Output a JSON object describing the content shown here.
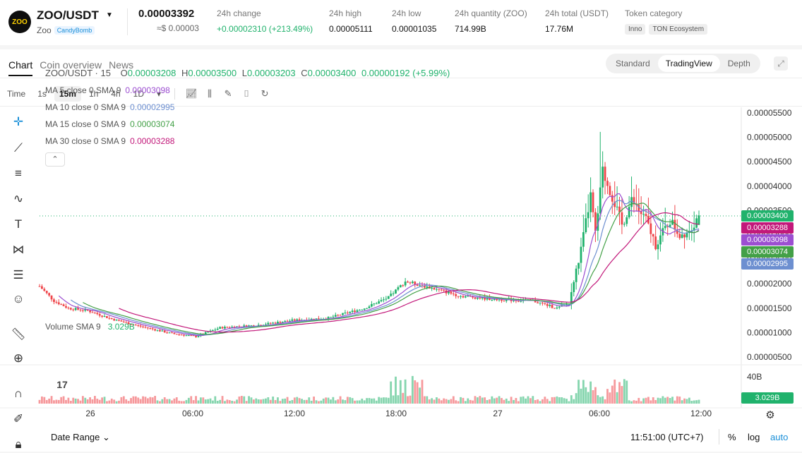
{
  "header": {
    "logo_text": "ZOO",
    "pair": "ZOO/USDT",
    "caret": "▼",
    "token_name": "Zoo",
    "badge": "CandyBomb",
    "last_price": "0.00003392",
    "price_usd": "≈$ 0.00003",
    "stats": [
      {
        "label": "24h change",
        "value": "+0.00002310 (+213.49%)"
      },
      {
        "label": "24h high",
        "value": "0.00005111"
      },
      {
        "label": "24h low",
        "value": "0.00001035"
      },
      {
        "label": "24h quantity (ZOO)",
        "value": "714.99B"
      },
      {
        "label": "24h total (USDT)",
        "value": "17.76M"
      }
    ],
    "category_label": "Token category",
    "categories": [
      "Inno",
      "TON Ecosystem"
    ]
  },
  "tabs": [
    "Chart",
    "Coin overview",
    "News"
  ],
  "view_switch": [
    "Standard",
    "TradingView",
    "Depth"
  ],
  "toolbar": {
    "time_label": "Time",
    "timeframes": [
      "1s",
      "15m",
      "1h",
      "4h",
      "1D"
    ],
    "active_timeframe": "15m",
    "more": "▾"
  },
  "legend": {
    "symbol": "ZOO/USDT · 15",
    "o_label": "O",
    "o": "0.00003208",
    "h_label": "H",
    "h": "0.00003500",
    "l_label": "L",
    "l": "0.00003203",
    "c_label": "C",
    "c": "0.00003400",
    "change": "0.00000192 (+5.99%)",
    "ma": [
      {
        "label": "MA 5 close 0 SMA 9",
        "value": "0.00003098",
        "color": "#9c4fd1"
      },
      {
        "label": "MA 10 close 0 SMA 9",
        "value": "0.00002995",
        "color": "#6d8fd0"
      },
      {
        "label": "MA 15 close 0 SMA 9",
        "value": "0.00003074",
        "color": "#43a047"
      },
      {
        "label": "MA 30 close 0 SMA 9",
        "value": "0.00003288",
        "color": "#c2187a"
      }
    ],
    "collapse": "⌃"
  },
  "volume": {
    "label": "Volume SMA 9",
    "value": "3.029B",
    "axis_label": "40B"
  },
  "price_axis": [
    "0.00005500",
    "0.00005000",
    "0.00004500",
    "0.00004000",
    "0.00003500",
    "0.00003000",
    "0.00002500",
    "0.00002000",
    "0.00001500",
    "0.00001000",
    "0.00000500"
  ],
  "time_axis": [
    "26",
    "06:00",
    "12:00",
    "18:00",
    "27",
    "06:00",
    "12:00"
  ],
  "price_tags": [
    {
      "value": "0.00003400",
      "color": "#20b26c"
    },
    {
      "value": "0.00003288",
      "color": "#c2187a"
    },
    {
      "value": "0.00003098",
      "color": "#9c4fd1"
    },
    {
      "value": "0.00003074",
      "color": "#43a047"
    },
    {
      "value": "0.00002995",
      "color": "#6d8fd0"
    }
  ],
  "footer": {
    "date_range": "Date Range",
    "clock": "11:51:00 (UTC+7)",
    "pct": "%",
    "log": "log",
    "auto": "auto"
  },
  "colors": {
    "up": "#20b26c",
    "down": "#ef454a"
  }
}
